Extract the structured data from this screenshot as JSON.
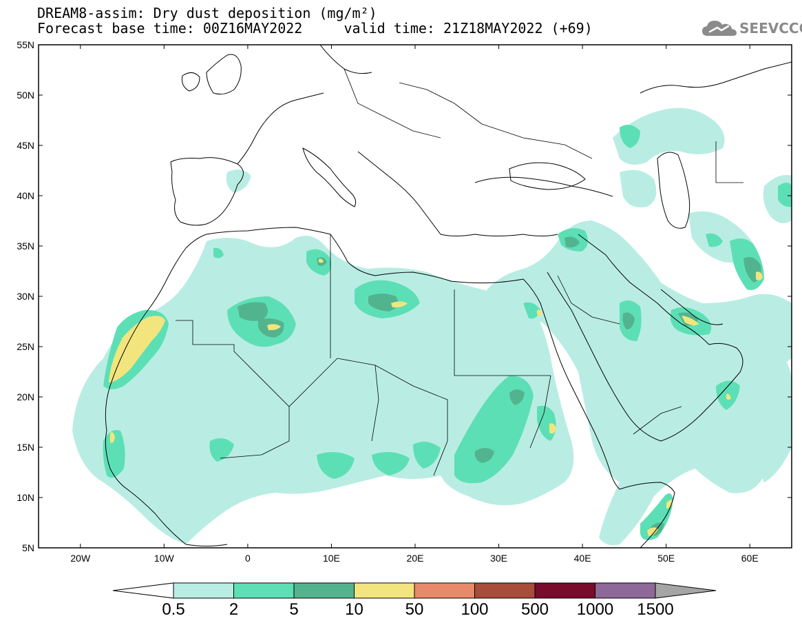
{
  "header": {
    "title_line1": "DREAM8-assim: Dry dust deposition (mg/m²)",
    "title_line2": "Forecast base time: 00Z16MAY2022     valid time: 21Z18MAY2022 (+69)"
  },
  "logo": {
    "text": "SEEVCCC",
    "icon": "cloud-icon",
    "color": "#8b8b8b"
  },
  "map": {
    "lon_range": [
      -25,
      65
    ],
    "lat_range": [
      5,
      55
    ],
    "lat_ticks": [
      {
        "value": 55,
        "label": "55N"
      },
      {
        "value": 50,
        "label": "50N"
      },
      {
        "value": 45,
        "label": "45N"
      },
      {
        "value": 40,
        "label": "40N"
      },
      {
        "value": 35,
        "label": "35N"
      },
      {
        "value": 30,
        "label": "30N"
      },
      {
        "value": 25,
        "label": "25N"
      },
      {
        "value": 20,
        "label": "20N"
      },
      {
        "value": 15,
        "label": "15N"
      },
      {
        "value": 10,
        "label": "10N"
      },
      {
        "value": 5,
        "label": "5N"
      }
    ],
    "lon_ticks": [
      {
        "value": -20,
        "label": "20W"
      },
      {
        "value": -10,
        "label": "10W"
      },
      {
        "value": 0,
        "label": "0"
      },
      {
        "value": 10,
        "label": "10E"
      },
      {
        "value": 20,
        "label": "20E"
      },
      {
        "value": 30,
        "label": "30E"
      },
      {
        "value": 40,
        "label": "40E"
      },
      {
        "value": 50,
        "label": "50E"
      },
      {
        "value": 60,
        "label": "60E"
      }
    ]
  },
  "colorbar": {
    "labels": [
      "0.5",
      "2",
      "5",
      "10",
      "50",
      "100",
      "500",
      "1000",
      "1500"
    ],
    "colors": [
      "#ffffff",
      "#b9ede3",
      "#5ddfb6",
      "#52b48f",
      "#f2e57e",
      "#e8896b",
      "#a84c3c",
      "#7a0c2b",
      "#8d6898",
      "#a5a5a5"
    ]
  },
  "legend_colors": {
    "c1": "#b9ede3",
    "c2": "#5ddfb6",
    "c3": "#52b48f",
    "c4": "#f2e57e"
  }
}
